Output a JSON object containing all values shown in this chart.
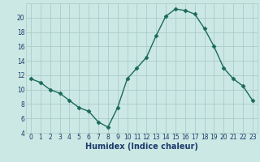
{
  "x": [
    0,
    1,
    2,
    3,
    4,
    5,
    6,
    7,
    8,
    9,
    10,
    11,
    12,
    13,
    14,
    15,
    16,
    17,
    18,
    19,
    20,
    21,
    22,
    23
  ],
  "y": [
    11.5,
    11.0,
    10.0,
    9.5,
    8.5,
    7.5,
    7.0,
    5.5,
    4.8,
    7.5,
    11.5,
    13.0,
    14.5,
    17.5,
    20.2,
    21.2,
    21.0,
    20.5,
    18.5,
    16.0,
    13.0,
    11.5,
    10.5,
    8.5
  ],
  "line_color": "#1a6b5a",
  "marker": "D",
  "markersize": 2.5,
  "linewidth": 1.0,
  "bg_color": "#cce8e4",
  "grid_color": "#aaccc8",
  "xlabel": "Humidex (Indice chaleur)",
  "xlabel_fontsize": 7,
  "xlabel_color": "#1a3a6a",
  "tick_color": "#1a3a6a",
  "xlim": [
    -0.5,
    23.5
  ],
  "ylim": [
    4,
    22
  ],
  "yticks": [
    4,
    6,
    8,
    10,
    12,
    14,
    16,
    18,
    20
  ],
  "xticks": [
    0,
    1,
    2,
    3,
    4,
    5,
    6,
    7,
    8,
    9,
    10,
    11,
    12,
    13,
    14,
    15,
    16,
    17,
    18,
    19,
    20,
    21,
    22,
    23
  ],
  "tick_fontsize": 5.5
}
